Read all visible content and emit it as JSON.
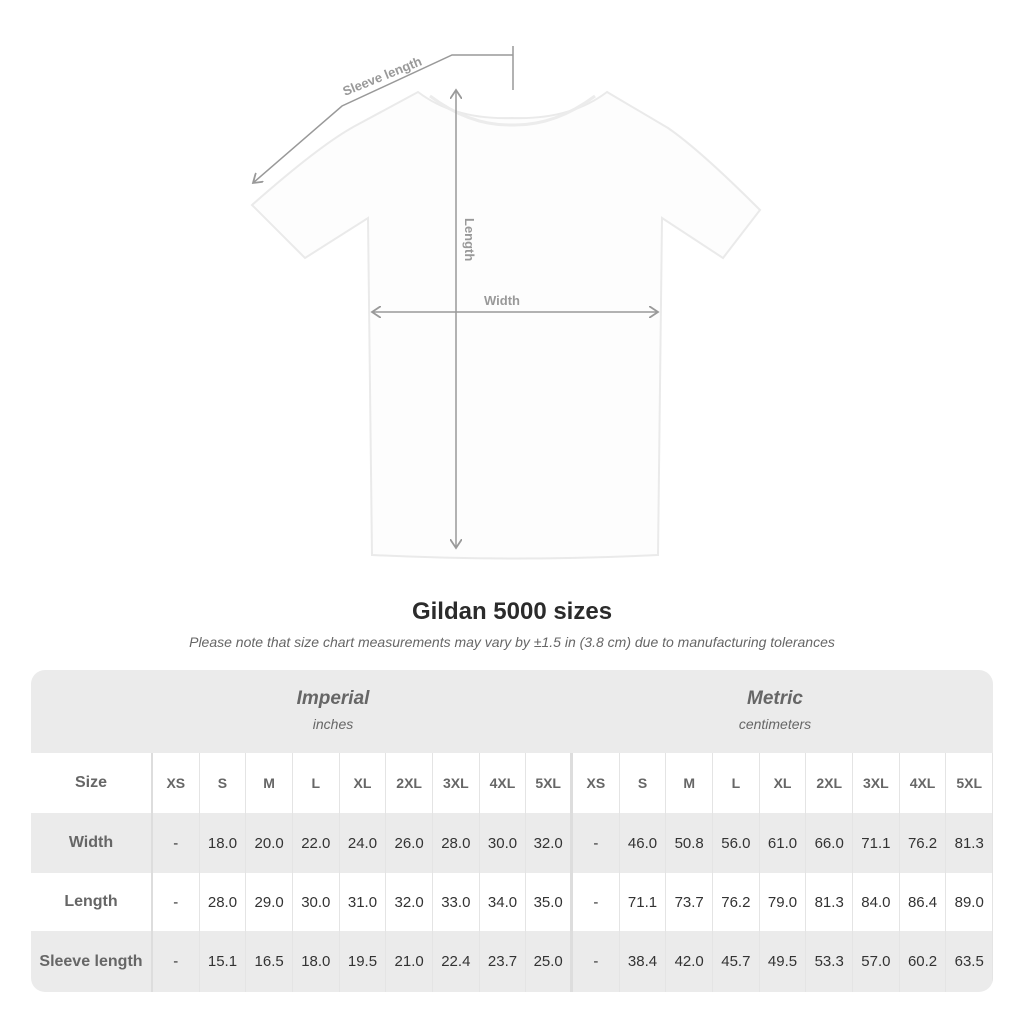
{
  "diagram": {
    "sleeve_label": "Sleeve length",
    "length_label": "Length",
    "width_label": "Width"
  },
  "title": "Gildan 5000 sizes",
  "note": "Please note that size chart measurements may vary by ±1.5 in (3.8 cm) due to manufacturing tolerances",
  "imperial": {
    "name": "Imperial",
    "unit": "inches"
  },
  "metric": {
    "name": "Metric",
    "unit": "centimeters"
  },
  "size_label": "Size",
  "sizes": [
    "XS",
    "S",
    "M",
    "L",
    "XL",
    "2XL",
    "3XL",
    "4XL",
    "5XL"
  ],
  "rows": [
    {
      "label": "Width",
      "imperial": [
        "-",
        "18.0",
        "20.0",
        "22.0",
        "24.0",
        "26.0",
        "28.0",
        "30.0",
        "32.0"
      ],
      "metric": [
        "-",
        "46.0",
        "50.8",
        "56.0",
        "61.0",
        "66.0",
        "71.1",
        "76.2",
        "81.3"
      ]
    },
    {
      "label": "Length",
      "imperial": [
        "-",
        "28.0",
        "29.0",
        "30.0",
        "31.0",
        "32.0",
        "33.0",
        "34.0",
        "35.0"
      ],
      "metric": [
        "-",
        "71.1",
        "73.7",
        "76.2",
        "79.0",
        "81.3",
        "84.0",
        "86.4",
        "89.0"
      ]
    },
    {
      "label": "Sleeve length",
      "imperial": [
        "-",
        "15.1",
        "16.5",
        "18.0",
        "19.5",
        "21.0",
        "22.4",
        "23.7",
        "25.0"
      ],
      "metric": [
        "-",
        "38.4",
        "42.0",
        "45.7",
        "49.5",
        "53.3",
        "57.0",
        "60.2",
        "63.5"
      ]
    }
  ]
}
